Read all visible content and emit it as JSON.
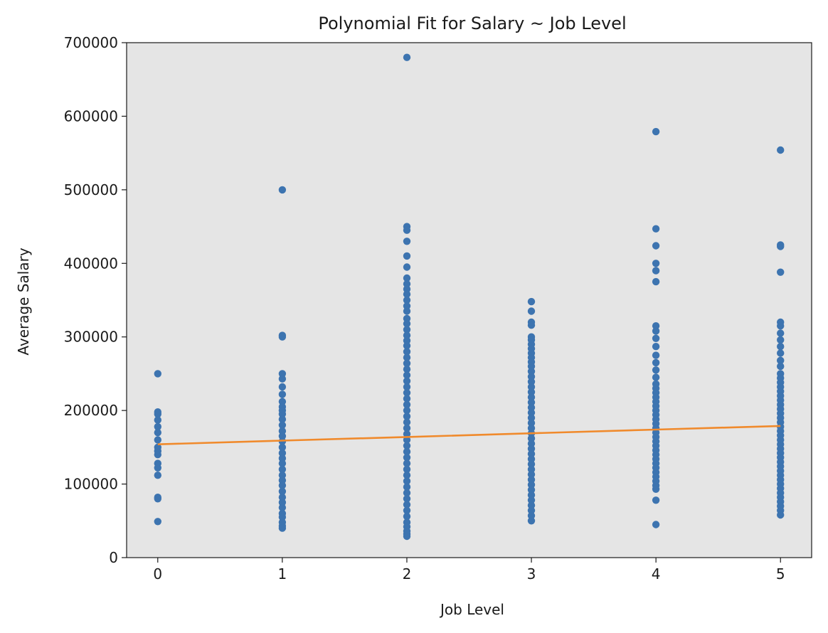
{
  "chart_data": {
    "type": "scatter",
    "title": "Polynomial Fit for Salary ~ Job Level",
    "xlabel": "Job Level",
    "ylabel": "Average Salary",
    "xlim": [
      -0.25,
      5.25
    ],
    "ylim": [
      0,
      700000
    ],
    "x_ticks": [
      "0",
      "1",
      "2",
      "3",
      "4",
      "5"
    ],
    "y_ticks": [
      "0",
      "100000",
      "200000",
      "300000",
      "400000",
      "500000",
      "600000",
      "700000"
    ],
    "grid": false,
    "legend": "none",
    "background": "#e5e5e5",
    "series": [
      {
        "kind": "points",
        "color": "#3d74b0",
        "points": [
          [
            0,
            250000
          ],
          [
            0,
            198000
          ],
          [
            0,
            195000
          ],
          [
            0,
            187000
          ],
          [
            0,
            178000
          ],
          [
            0,
            170000
          ],
          [
            0,
            160000
          ],
          [
            0,
            150000
          ],
          [
            0,
            145000
          ],
          [
            0,
            140000
          ],
          [
            0,
            128000
          ],
          [
            0,
            122000
          ],
          [
            0,
            112000
          ],
          [
            0,
            82000
          ],
          [
            0,
            80000
          ],
          [
            0,
            49000
          ],
          [
            1,
            500000
          ],
          [
            1,
            302000
          ],
          [
            1,
            300000
          ],
          [
            1,
            250000
          ],
          [
            1,
            243000
          ],
          [
            1,
            232000
          ],
          [
            1,
            222000
          ],
          [
            1,
            212000
          ],
          [
            1,
            205000
          ],
          [
            1,
            200000
          ],
          [
            1,
            195000
          ],
          [
            1,
            188000
          ],
          [
            1,
            180000
          ],
          [
            1,
            172000
          ],
          [
            1,
            165000
          ],
          [
            1,
            158000
          ],
          [
            1,
            150000
          ],
          [
            1,
            142000
          ],
          [
            1,
            135000
          ],
          [
            1,
            128000
          ],
          [
            1,
            120000
          ],
          [
            1,
            112000
          ],
          [
            1,
            105000
          ],
          [
            1,
            98000
          ],
          [
            1,
            90000
          ],
          [
            1,
            82000
          ],
          [
            1,
            75000
          ],
          [
            1,
            68000
          ],
          [
            1,
            60000
          ],
          [
            1,
            55000
          ],
          [
            1,
            48000
          ],
          [
            1,
            43000
          ],
          [
            1,
            40000
          ],
          [
            2,
            680000
          ],
          [
            2,
            450000
          ],
          [
            2,
            445000
          ],
          [
            2,
            430000
          ],
          [
            2,
            410000
          ],
          [
            2,
            395000
          ],
          [
            2,
            380000
          ],
          [
            2,
            372000
          ],
          [
            2,
            365000
          ],
          [
            2,
            358000
          ],
          [
            2,
            350000
          ],
          [
            2,
            342000
          ],
          [
            2,
            335000
          ],
          [
            2,
            325000
          ],
          [
            2,
            318000
          ],
          [
            2,
            310000
          ],
          [
            2,
            302000
          ],
          [
            2,
            295000
          ],
          [
            2,
            288000
          ],
          [
            2,
            280000
          ],
          [
            2,
            272000
          ],
          [
            2,
            264000
          ],
          [
            2,
            256000
          ],
          [
            2,
            248000
          ],
          [
            2,
            240000
          ],
          [
            2,
            232000
          ],
          [
            2,
            224000
          ],
          [
            2,
            216000
          ],
          [
            2,
            208000
          ],
          [
            2,
            200000
          ],
          [
            2,
            192000
          ],
          [
            2,
            184000
          ],
          [
            2,
            176000
          ],
          [
            2,
            168000
          ],
          [
            2,
            160000
          ],
          [
            2,
            152000
          ],
          [
            2,
            144000
          ],
          [
            2,
            136000
          ],
          [
            2,
            128000
          ],
          [
            2,
            120000
          ],
          [
            2,
            112000
          ],
          [
            2,
            104000
          ],
          [
            2,
            96000
          ],
          [
            2,
            88000
          ],
          [
            2,
            80000
          ],
          [
            2,
            72000
          ],
          [
            2,
            64000
          ],
          [
            2,
            56000
          ],
          [
            2,
            48000
          ],
          [
            2,
            42000
          ],
          [
            2,
            36000
          ],
          [
            2,
            32000
          ],
          [
            2,
            29000
          ],
          [
            3,
            348000
          ],
          [
            3,
            335000
          ],
          [
            3,
            320000
          ],
          [
            3,
            316000
          ],
          [
            3,
            300000
          ],
          [
            3,
            296000
          ],
          [
            3,
            290000
          ],
          [
            3,
            284000
          ],
          [
            3,
            278000
          ],
          [
            3,
            272000
          ],
          [
            3,
            266000
          ],
          [
            3,
            260000
          ],
          [
            3,
            253000
          ],
          [
            3,
            246000
          ],
          [
            3,
            239000
          ],
          [
            3,
            232000
          ],
          [
            3,
            225000
          ],
          [
            3,
            218000
          ],
          [
            3,
            211000
          ],
          [
            3,
            204000
          ],
          [
            3,
            197000
          ],
          [
            3,
            190000
          ],
          [
            3,
            183000
          ],
          [
            3,
            176000
          ],
          [
            3,
            169000
          ],
          [
            3,
            162000
          ],
          [
            3,
            155000
          ],
          [
            3,
            148000
          ],
          [
            3,
            141000
          ],
          [
            3,
            134000
          ],
          [
            3,
            127000
          ],
          [
            3,
            120000
          ],
          [
            3,
            113000
          ],
          [
            3,
            106000
          ],
          [
            3,
            99000
          ],
          [
            3,
            92000
          ],
          [
            3,
            85000
          ],
          [
            3,
            78000
          ],
          [
            3,
            71000
          ],
          [
            3,
            64000
          ],
          [
            3,
            57000
          ],
          [
            3,
            50000
          ],
          [
            4,
            579000
          ],
          [
            4,
            447000
          ],
          [
            4,
            424000
          ],
          [
            4,
            400000
          ],
          [
            4,
            390000
          ],
          [
            4,
            375000
          ],
          [
            4,
            315000
          ],
          [
            4,
            308000
          ],
          [
            4,
            298000
          ],
          [
            4,
            287000
          ],
          [
            4,
            275000
          ],
          [
            4,
            265000
          ],
          [
            4,
            255000
          ],
          [
            4,
            245000
          ],
          [
            4,
            236000
          ],
          [
            4,
            230000
          ],
          [
            4,
            224000
          ],
          [
            4,
            218000
          ],
          [
            4,
            212000
          ],
          [
            4,
            206000
          ],
          [
            4,
            200000
          ],
          [
            4,
            194000
          ],
          [
            4,
            188000
          ],
          [
            4,
            182000
          ],
          [
            4,
            176000
          ],
          [
            4,
            170000
          ],
          [
            4,
            164000
          ],
          [
            4,
            158000
          ],
          [
            4,
            152000
          ],
          [
            4,
            146000
          ],
          [
            4,
            140000
          ],
          [
            4,
            134000
          ],
          [
            4,
            128000
          ],
          [
            4,
            122000
          ],
          [
            4,
            116000
          ],
          [
            4,
            110000
          ],
          [
            4,
            104000
          ],
          [
            4,
            98000
          ],
          [
            4,
            93000
          ],
          [
            4,
            78000
          ],
          [
            4,
            45000
          ],
          [
            5,
            554000
          ],
          [
            5,
            425000
          ],
          [
            5,
            423000
          ],
          [
            5,
            388000
          ],
          [
            5,
            320000
          ],
          [
            5,
            315000
          ],
          [
            5,
            305000
          ],
          [
            5,
            296000
          ],
          [
            5,
            287000
          ],
          [
            5,
            278000
          ],
          [
            5,
            268000
          ],
          [
            5,
            260000
          ],
          [
            5,
            250000
          ],
          [
            5,
            244000
          ],
          [
            5,
            238000
          ],
          [
            5,
            232000
          ],
          [
            5,
            226000
          ],
          [
            5,
            220000
          ],
          [
            5,
            214000
          ],
          [
            5,
            208000
          ],
          [
            5,
            202000
          ],
          [
            5,
            196000
          ],
          [
            5,
            190000
          ],
          [
            5,
            184000
          ],
          [
            5,
            178000
          ],
          [
            5,
            172000
          ],
          [
            5,
            166000
          ],
          [
            5,
            160000
          ],
          [
            5,
            154000
          ],
          [
            5,
            148000
          ],
          [
            5,
            142000
          ],
          [
            5,
            136000
          ],
          [
            5,
            130000
          ],
          [
            5,
            124000
          ],
          [
            5,
            118000
          ],
          [
            5,
            112000
          ],
          [
            5,
            106000
          ],
          [
            5,
            100000
          ],
          [
            5,
            94000
          ],
          [
            5,
            88000
          ],
          [
            5,
            82000
          ],
          [
            5,
            76000
          ],
          [
            5,
            70000
          ],
          [
            5,
            64000
          ],
          [
            5,
            58000
          ]
        ]
      },
      {
        "kind": "fit-line",
        "color": "#f08a2c",
        "x": [
          0,
          1,
          2,
          3,
          4,
          5
        ],
        "values": [
          154000,
          159000,
          164000,
          169000,
          174000,
          179000
        ]
      }
    ]
  }
}
